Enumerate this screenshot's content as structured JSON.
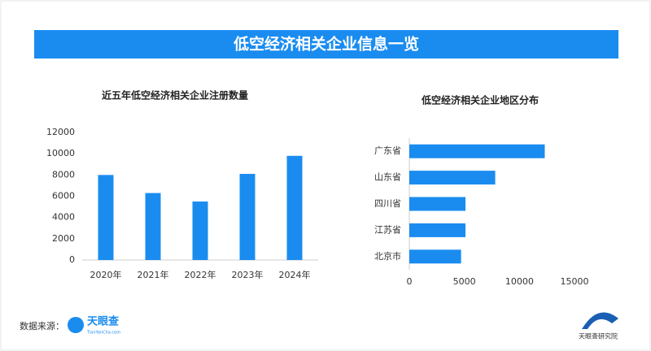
{
  "header": {
    "title": "低空经济相关企业信息一览"
  },
  "footer": {
    "source_label": "数据来源：",
    "source_logo": "天眼查",
    "source_site": "TianYanCha.com",
    "brand": "天眼查研究院"
  },
  "chart_data": [
    {
      "type": "bar",
      "title": "近五年低空经济相关企业注册数量",
      "categories": [
        "2020年",
        "2021年",
        "2022年",
        "2023年",
        "2024年"
      ],
      "values": [
        8000,
        6300,
        5500,
        8100,
        9800
      ],
      "color": "#1a8cf0",
      "ylim": [
        0,
        12000
      ],
      "yticks": [
        0,
        2000,
        4000,
        6000,
        8000,
        10000,
        12000
      ],
      "grid": false
    },
    {
      "type": "barh",
      "title": "低空经济相关企业地区分布",
      "categories": [
        "广东省",
        "山东省",
        "四川省",
        "江苏省",
        "北京市"
      ],
      "values": [
        12300,
        7800,
        5100,
        5100,
        4700
      ],
      "color": "#1a8cf0",
      "xlim": [
        0,
        15000
      ],
      "xticks": [
        0,
        5000,
        10000,
        15000
      ],
      "grid": false
    }
  ]
}
